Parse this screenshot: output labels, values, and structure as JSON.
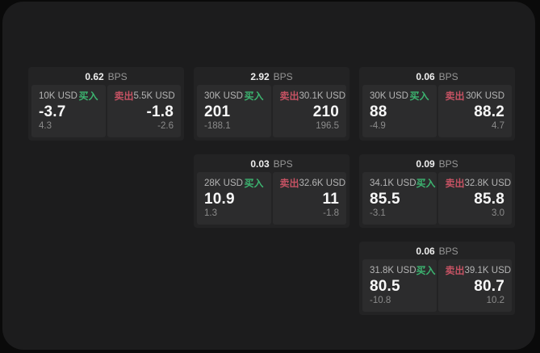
{
  "labels": {
    "bps": "BPS",
    "buy": "买入",
    "sell": "卖出"
  },
  "colors": {
    "buy_accent": "#3cb470",
    "sell_accent": "#c55263",
    "panel_bg": "#1c1c1d",
    "card_bg": "#232324",
    "subpanel_bg": "#2c2c2d"
  },
  "cards": [
    {
      "row": 1,
      "col": 1,
      "bps": "0.62",
      "buy": {
        "size": "10K USD",
        "value": "-3.7",
        "delta": "4.3"
      },
      "sell": {
        "size": "5.5K USD",
        "value": "-1.8",
        "delta": "-2.6"
      }
    },
    {
      "row": 1,
      "col": 2,
      "bps": "2.92",
      "buy": {
        "size": "30K USD",
        "value": "201",
        "delta": "-188.1"
      },
      "sell": {
        "size": "30.1K USD",
        "value": "210",
        "delta": "196.5"
      }
    },
    {
      "row": 1,
      "col": 3,
      "bps": "0.06",
      "buy": {
        "size": "30K USD",
        "value": "88",
        "delta": "-4.9"
      },
      "sell": {
        "size": "30K USD",
        "value": "88.2",
        "delta": "4.7"
      }
    },
    {
      "row": 2,
      "col": 2,
      "bps": "0.03",
      "buy": {
        "size": "28K USD",
        "value": "10.9",
        "delta": "1.3"
      },
      "sell": {
        "size": "32.6K USD",
        "value": "11",
        "delta": "-1.8"
      }
    },
    {
      "row": 2,
      "col": 3,
      "bps": "0.09",
      "buy": {
        "size": "34.1K USD",
        "value": "85.5",
        "delta": "-3.1"
      },
      "sell": {
        "size": "32.8K USD",
        "value": "85.8",
        "delta": "3.0"
      }
    },
    {
      "row": 3,
      "col": 3,
      "bps": "0.06",
      "buy": {
        "size": "31.8K USD",
        "value": "80.5",
        "delta": "-10.8"
      },
      "sell": {
        "size": "39.1K USD",
        "value": "80.7",
        "delta": "10.2"
      }
    }
  ]
}
